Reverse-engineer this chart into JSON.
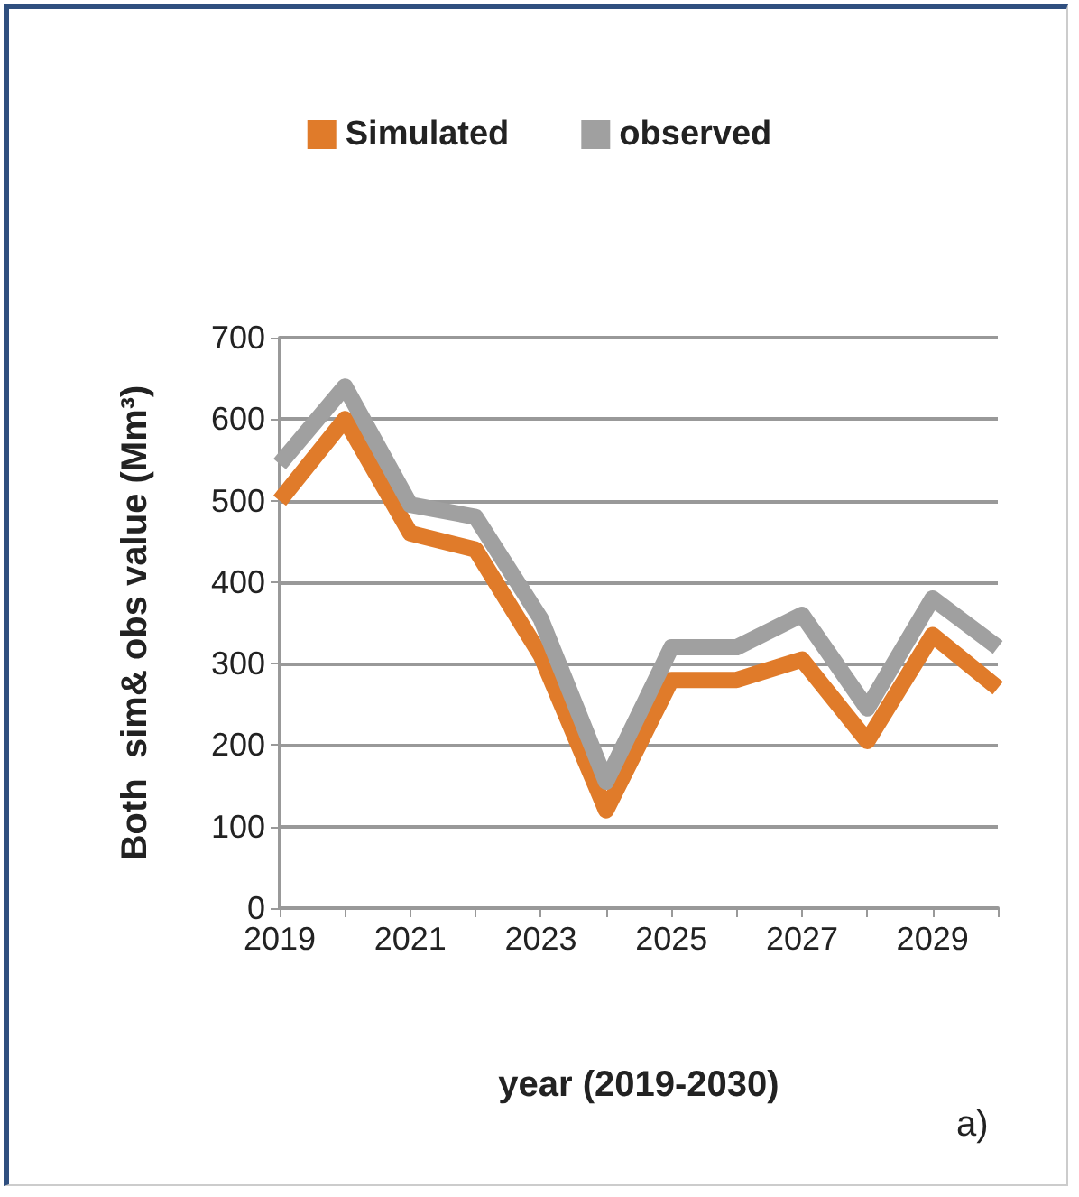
{
  "chart_data": {
    "type": "line",
    "xlabel": "year (2019-2030)",
    "ylabel": "Both  sim& obs value (Mm³)",
    "categories": [
      "2019",
      null,
      "2021",
      null,
      "2023",
      null,
      "2025",
      null,
      "2027",
      null,
      "2029",
      null
    ],
    "series": [
      {
        "name": "Simulated",
        "color": "#e07b2a",
        "values": [
          500,
          600,
          460,
          440,
          310,
          120,
          280,
          280,
          305,
          205,
          335,
          270
        ]
      },
      {
        "name": "observed",
        "color": "#a0a0a0",
        "values": [
          545,
          640,
          495,
          480,
          355,
          155,
          320,
          320,
          360,
          245,
          380,
          320
        ]
      }
    ],
    "ylim": [
      0,
      700
    ],
    "yticks": [
      0,
      100,
      200,
      300,
      400,
      500,
      600,
      700
    ],
    "grid": "y",
    "legend": "top",
    "marker": "none",
    "line_style": "solid",
    "annotations": [
      "a)"
    ]
  }
}
